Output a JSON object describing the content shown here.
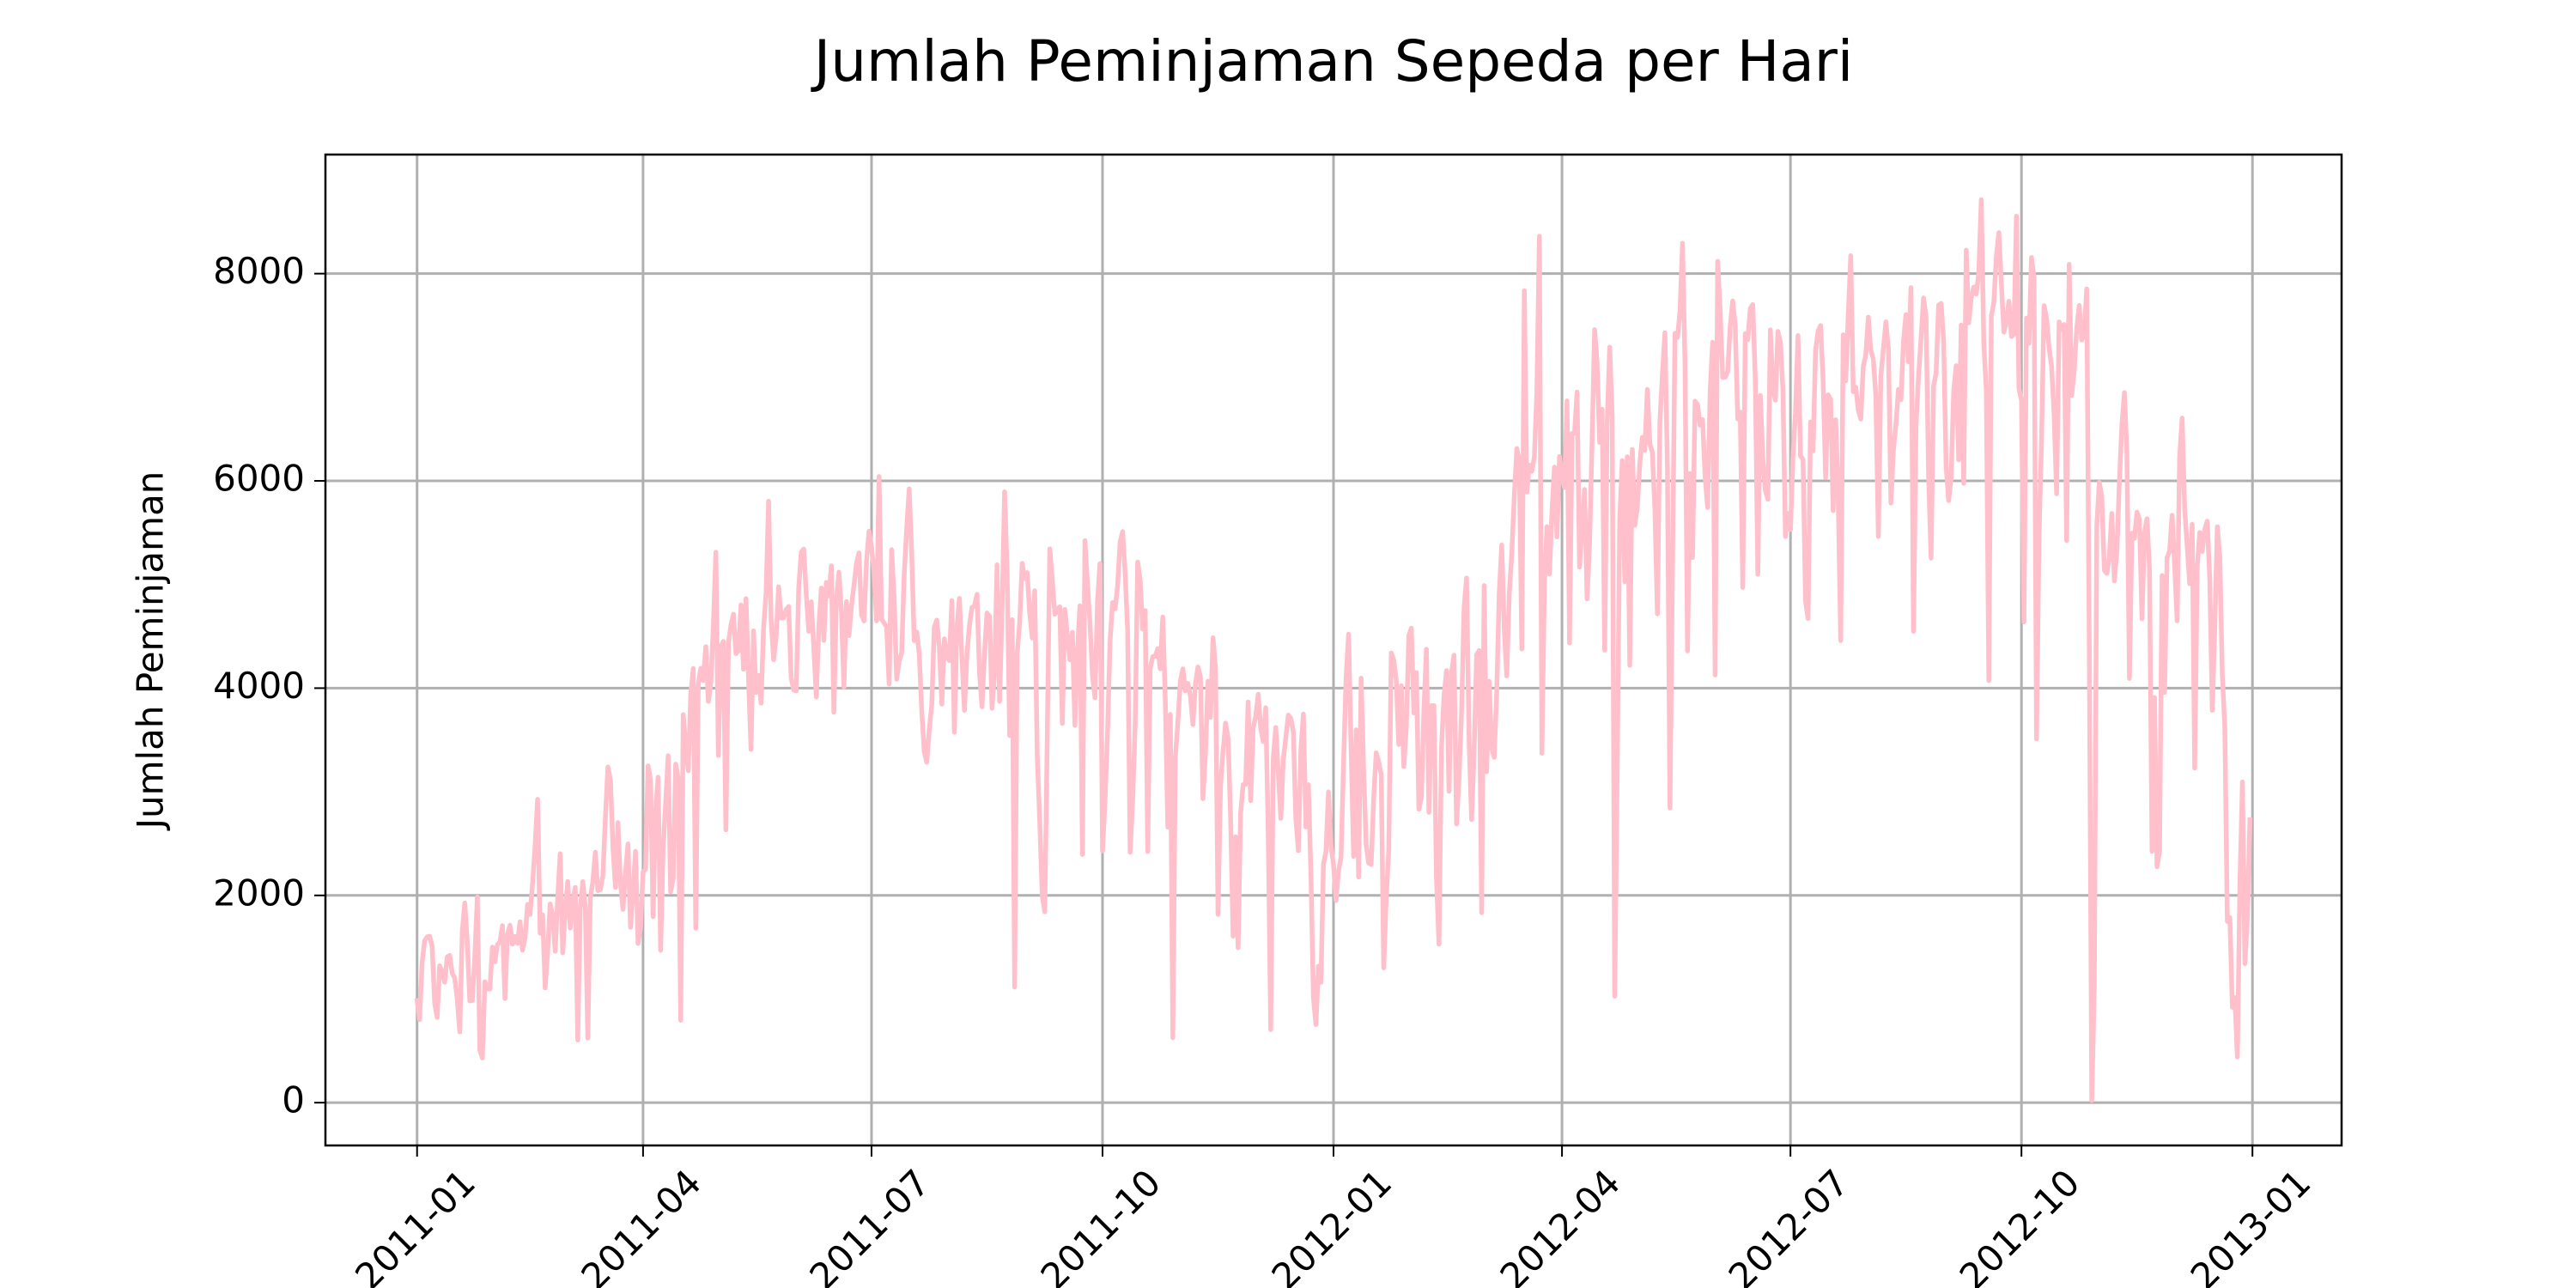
{
  "chart_data": {
    "type": "line",
    "title": "Jumlah Peminjaman Sepeda per Hari",
    "ylabel": "Jumlah Peminjaman",
    "color": "#ffc0cb",
    "grid": true,
    "xlim": [
      -36.5,
      766.5
    ],
    "xticks": [
      {
        "value": 0,
        "label": "2011-01"
      },
      {
        "value": 90,
        "label": "2011-04"
      },
      {
        "value": 181,
        "label": "2011-07"
      },
      {
        "value": 273,
        "label": "2011-10"
      },
      {
        "value": 365,
        "label": "2012-01"
      },
      {
        "value": 456,
        "label": "2012-04"
      },
      {
        "value": 547,
        "label": "2012-07"
      },
      {
        "value": 639,
        "label": "2012-10"
      },
      {
        "value": 731,
        "label": "2013-01"
      }
    ],
    "ylim": [
      -413,
      9149
    ],
    "yticks": [
      0,
      2000,
      4000,
      6000,
      8000
    ],
    "values": [
      985,
      801,
      1349,
      1562,
      1600,
      1606,
      1510,
      959,
      822,
      1321,
      1263,
      1162,
      1406,
      1421,
      1248,
      1204,
      1000,
      683,
      1650,
      1927,
      1543,
      981,
      986,
      1416,
      1985,
      506,
      431,
      1167,
      1098,
      1096,
      1501,
      1360,
      1526,
      1550,
      1708,
      1005,
      1623,
      1712,
      1530,
      1605,
      1538,
      1746,
      1472,
      1589,
      1913,
      1815,
      2115,
      2475,
      2927,
      1635,
      1812,
      1107,
      1450,
      1917,
      1807,
      1461,
      1969,
      2402,
      1446,
      1851,
      2134,
      1685,
      1944,
      2077,
      605,
      1872,
      2133,
      1891,
      623,
      1977,
      2132,
      2417,
      2046,
      2056,
      2192,
      2744,
      3239,
      3117,
      2471,
      2077,
      2703,
      2121,
      1865,
      2210,
      2496,
      1693,
      2028,
      2425,
      1536,
      1685,
      2227,
      2252,
      3249,
      3115,
      1795,
      2808,
      3141,
      1471,
      2455,
      2895,
      3348,
      2034,
      2162,
      3267,
      3126,
      795,
      3744,
      3429,
      3204,
      3944,
      4189,
      1683,
      4036,
      4191,
      4073,
      4400,
      3872,
      4058,
      4595,
      5312,
      3351,
      4401,
      4451,
      2633,
      4433,
      4608,
      4714,
      4333,
      4362,
      4803,
      4182,
      4864,
      4105,
      3409,
      4553,
      3958,
      4123,
      3855,
      4575,
      4917,
      5805,
      4660,
      4274,
      4492,
      4978,
      4677,
      4679,
      4758,
      4788,
      4098,
      3982,
      3974,
      4968,
      5312,
      5342,
      4906,
      4548,
      4833,
      4401,
      3915,
      4586,
      4966,
      4460,
      5020,
      4891,
      5180,
      3767,
      4844,
      5119,
      4744,
      4010,
      4835,
      4507,
      4790,
      4991,
      5202,
      5305,
      4708,
      4648,
      5225,
      5515,
      5362,
      5119,
      4649,
      6043,
      4665,
      4629,
      4592,
      4040,
      5336,
      4881,
      4086,
      4258,
      4342,
      5084,
      5538,
      5923,
      5302,
      4458,
      4541,
      4332,
      3784,
      3387,
      3285,
      3606,
      3840,
      4590,
      4656,
      4390,
      3846,
      4475,
      4302,
      4266,
      4845,
      3574,
      4576,
      4866,
      4294,
      3785,
      4326,
      4602,
      4780,
      4792,
      4905,
      4150,
      3820,
      4338,
      4725,
      4694,
      3805,
      4153,
      5191,
      3873,
      4758,
      5895,
      5130,
      3542,
      4661,
      1115,
      4334,
      4634,
      5204,
      5058,
      5115,
      4727,
      4484,
      4940,
      3351,
      2710,
      1996,
      1842,
      3544,
      5345,
      5046,
      4713,
      4763,
      4785,
      3659,
      4760,
      4511,
      4274,
      4539,
      3641,
      4352,
      4795,
      2395,
      5423,
      5010,
      4630,
      4120,
      3907,
      4839,
      5202,
      2429,
      2918,
      3570,
      4456,
      4826,
      4765,
      4985,
      5409,
      5511,
      5117,
      4563,
      2416,
      2913,
      3644,
      5217,
      5041,
      4570,
      4748,
      2424,
      4195,
      4304,
      4308,
      4381,
      4187,
      4687,
      3894,
      2659,
      3747,
      627,
      3331,
      3669,
      4068,
      4186,
      3974,
      4046,
      3926,
      3649,
      4035,
      4205,
      4109,
      2933,
      3368,
      4067,
      3717,
      4486,
      4195,
      1817,
      3053,
      3392,
      3663,
      3520,
      2765,
      1607,
      2566,
      1495,
      2792,
      3068,
      3071,
      3867,
      2914,
      3613,
      3727,
      3940,
      3614,
      3485,
      3811,
      2594,
      705,
      3322,
      3620,
      3190,
      2743,
      3310,
      3523,
      3740,
      3709,
      3577,
      2739,
      2431,
      3403,
      3750,
      2660,
      3068,
      2209,
      1011,
      754,
      1317,
      1162,
      2302,
      2423,
      2999,
      2485,
      2294,
      1951,
      2236,
      2368,
      3272,
      4098,
      4521,
      3425,
      2376,
      3598,
      2177,
      4097,
      3214,
      2493,
      2311,
      2298,
      2935,
      3376,
      3292,
      3163,
      1301,
      1977,
      2432,
      4339,
      4270,
      4075,
      3456,
      4023,
      3243,
      3624,
      4509,
      4579,
      3761,
      4151,
      2832,
      2947,
      3784,
      4375,
      2802,
      3830,
      3831,
      2169,
      1529,
      3422,
      3922,
      4169,
      3005,
      4154,
      4318,
      2689,
      3129,
      3777,
      4773,
      5062,
      3487,
      2732,
      3389,
      4322,
      4363,
      1834,
      4990,
      3194,
      4066,
      3423,
      3333,
      3956,
      4916,
      5382,
      4569,
      4118,
      4911,
      5298,
      5847,
      6312,
      6192,
      4378,
      7836,
      5892,
      6153,
      6093,
      6230,
      6871,
      8362,
      3372,
      4996,
      5558,
      5102,
      5698,
      6133,
      5459,
      6235,
      6041,
      5936,
      6772,
      4436,
      6457,
      6460,
      6857,
      5169,
      5585,
      5918,
      4862,
      5409,
      6398,
      7460,
      7132,
      6370,
      6691,
      4367,
      6565,
      7290,
      6624,
      1027,
      3214,
      5633,
      6196,
      5026,
      6233,
      4220,
      6304,
      5572,
      5740,
      6169,
      6421,
      6296,
      6883,
      6359,
      6273,
      5728,
      4717,
      6572,
      7030,
      7429,
      6118,
      2843,
      5115,
      7424,
      7384,
      7639,
      8294,
      7129,
      4359,
      6073,
      5260,
      6770,
      6734,
      6536,
      6591,
      6043,
      5743,
      6855,
      7338,
      4127,
      8120,
      7641,
      6998,
      7001,
      7055,
      7494,
      7736,
      7498,
      6598,
      6664,
      4972,
      7421,
      7363,
      7665,
      7702,
      6978,
      5099,
      6825,
      6211,
      5905,
      5823,
      7458,
      6891,
      6779,
      7442,
      7335,
      6879,
      5463,
      5687,
      5531,
      6227,
      6660,
      7403,
      6241,
      6207,
      4840,
      4672,
      6569,
      6290,
      7264,
      7446,
      7499,
      6969,
      6031,
      6830,
      6786,
      5713,
      6591,
      5870,
      4459,
      7410,
      6966,
      7592,
      8173,
      6861,
      6904,
      6685,
      6597,
      7105,
      7216,
      7580,
      7261,
      7175,
      6824,
      5464,
      7013,
      7273,
      7534,
      7286,
      5786,
      6299,
      6544,
      6883,
      6784,
      7347,
      7605,
      7148,
      7865,
      4549,
      6530,
      7006,
      7375,
      7765,
      7582,
      6053,
      5255,
      6917,
      7040,
      7697,
      7713,
      7350,
      6140,
      5810,
      6034,
      6864,
      7112,
      6203,
      7504,
      5976,
      8227,
      7525,
      7767,
      7870,
      7804,
      8009,
      8714,
      7333,
      6869,
      4073,
      7591,
      7720,
      8167,
      8395,
      7907,
      7436,
      7538,
      7733,
      7393,
      7415,
      8555,
      6889,
      6778,
      4639,
      7572,
      7328,
      8156,
      7965,
      3510,
      5478,
      6392,
      7691,
      7570,
      7282,
      7109,
      6639,
      5875,
      7534,
      7461,
      7509,
      5424,
      8090,
      6824,
      7058,
      7466,
      7693,
      7359,
      7444,
      7852,
      4459,
      22,
      1096,
      5566,
      5986,
      5847,
      5138,
      5107,
      5259,
      5686,
      5035,
      5315,
      5992,
      6536,
      6852,
      6269,
      4094,
      5495,
      5445,
      5698,
      5629,
      4669,
      5499,
      5634,
      5146,
      2425,
      3910,
      2277,
      2424,
      5087,
      3959,
      5260,
      5323,
      5668,
      5191,
      4649,
      6234,
      6606,
      5729,
      5375,
      5008,
      5582,
      3228,
      5170,
      5501,
      5319,
      5532,
      5611,
      5047,
      3786,
      4585,
      5557,
      5267,
      4128,
      3623,
      1749,
      1787,
      920,
      1013,
      441,
      2114,
      3095,
      1341,
      1796,
      2729
    ]
  }
}
